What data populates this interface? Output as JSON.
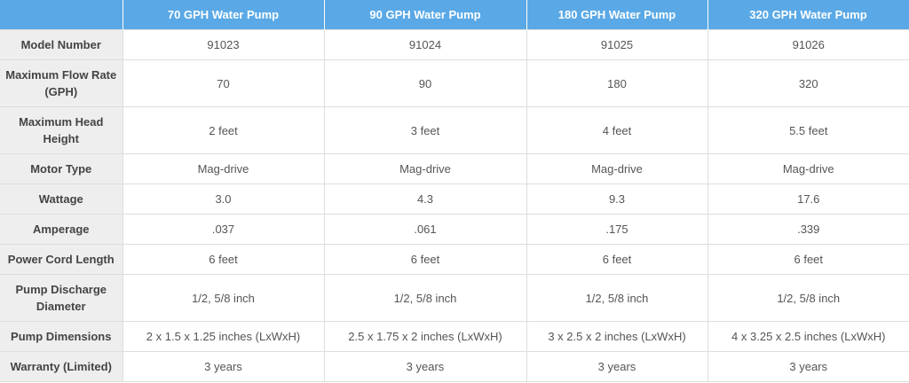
{
  "table": {
    "headers": [
      "",
      "70 GPH Water Pump",
      "90 GPH Water Pump",
      "180 GPH Water Pump",
      "320 GPH Water Pump"
    ],
    "rows": [
      {
        "label": "Model Number",
        "values": [
          "91023",
          "91024",
          "91025",
          "91026"
        ]
      },
      {
        "label": "Maximum Flow Rate (GPH)",
        "values": [
          "70",
          "90",
          "180",
          "320"
        ]
      },
      {
        "label": "Maximum Head Height",
        "values": [
          "2 feet",
          "3 feet",
          "4 feet",
          "5.5 feet"
        ]
      },
      {
        "label": "Motor Type",
        "values": [
          "Mag-drive",
          "Mag-drive",
          "Mag-drive",
          "Mag-drive"
        ]
      },
      {
        "label": "Wattage",
        "values": [
          "3.0",
          "4.3",
          "9.3",
          "17.6"
        ]
      },
      {
        "label": "Amperage",
        "values": [
          ".037",
          ".061",
          ".175",
          ".339"
        ]
      },
      {
        "label": "Power Cord Length",
        "values": [
          "6 feet",
          "6 feet",
          "6 feet",
          "6 feet"
        ]
      },
      {
        "label": "Pump Discharge Diameter",
        "values": [
          "1/2, 5/8 inch",
          "1/2, 5/8 inch",
          "1/2, 5/8 inch",
          "1/2, 5/8 inch"
        ]
      },
      {
        "label": "Pump Dimensions",
        "values": [
          "2 x 1.5 x 1.25 inches (LxWxH)",
          "2.5 x 1.75 x 2 inches (LxWxH)",
          "3 x 2.5 x 2 inches (LxWxH)",
          "4 x 3.25 x 2.5 inches (LxWxH)"
        ]
      },
      {
        "label": "Warranty (Limited)",
        "values": [
          "3 years",
          "3 years",
          "3 years",
          "3 years"
        ]
      }
    ]
  },
  "colors": {
    "header_bg": "#5aa9e6",
    "header_text": "#ffffff",
    "label_bg": "#eeeeee",
    "border": "#dddddd"
  }
}
